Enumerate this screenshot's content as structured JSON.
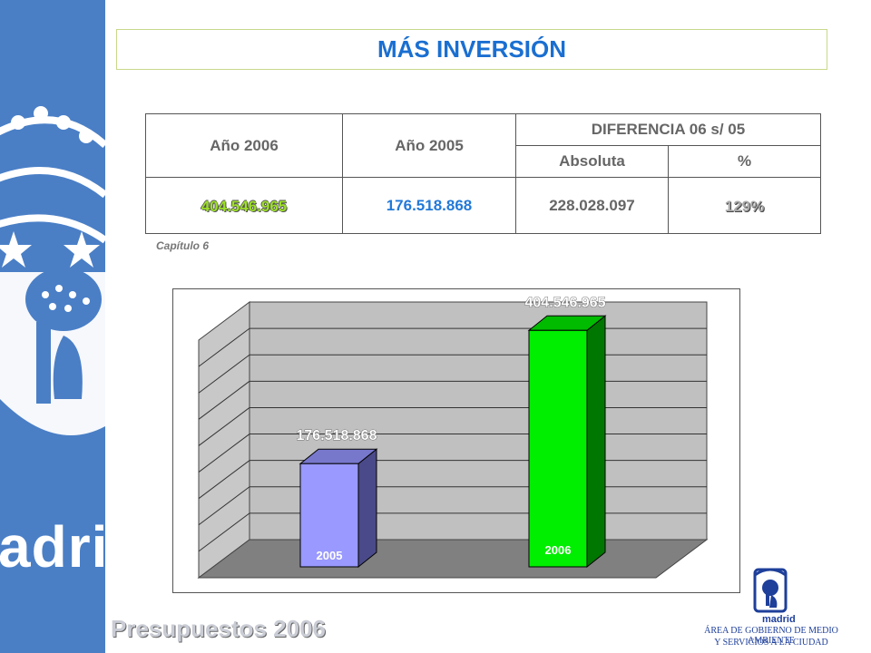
{
  "branding": {
    "left_band_text": "adrid",
    "footer_title": "Presupuestos 2006",
    "logo_label": "madrid",
    "department_line1": "ÁREA DE GOBIERNO DE MEDIO AMBIENTE",
    "department_line2": "Y SERVICIOS A LA CIUDAD"
  },
  "title": "MÁS INVERSIÓN",
  "table": {
    "headers": {
      "year_2006": "Año 2006",
      "year_2005": "Año 2005",
      "difference": "DIFERENCIA 06 s/ 05",
      "absolute": "Absoluta",
      "percent": "%"
    },
    "row": {
      "year_2006": "404.546.965",
      "year_2005": "176.518.868",
      "absolute": "228.028.097",
      "percent": "129%"
    },
    "note": "Capítulo 6"
  },
  "colors": {
    "accent_blue": "#1a6fd1",
    "band_blue": "#4a7fc6",
    "bar_2005": "#9999ff",
    "bar_2006": "#00ee00"
  },
  "chart_data": {
    "type": "bar",
    "categories": [
      "2005",
      "2006"
    ],
    "values": [
      176518868,
      404546965
    ],
    "data_labels": [
      "176.518.868",
      "404.546.965"
    ],
    "title": "",
    "xlabel": "",
    "ylabel": "",
    "ylim": [
      0,
      450000000
    ],
    "grid": true,
    "three_d": true
  }
}
